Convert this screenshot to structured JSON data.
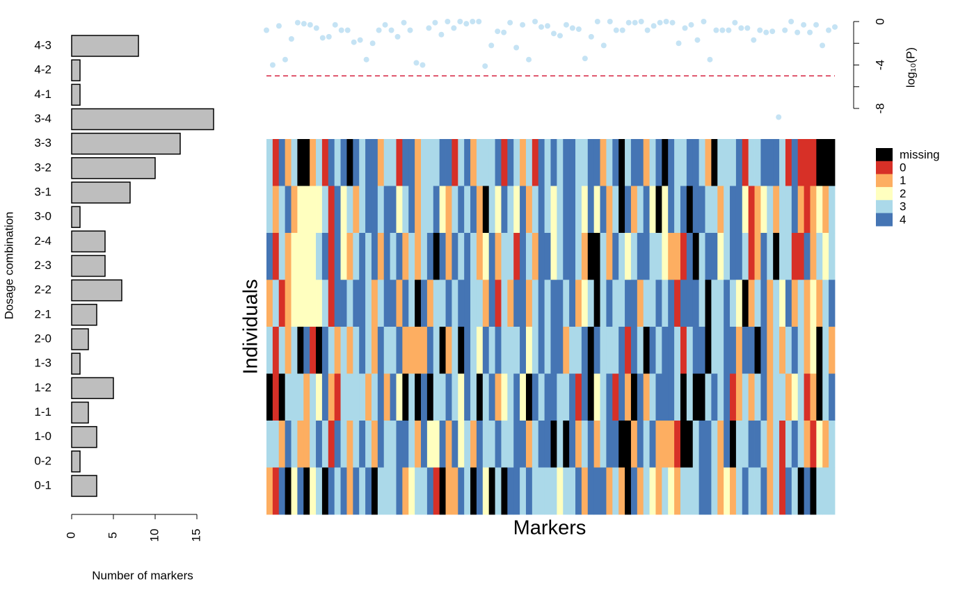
{
  "chart_data": [
    {
      "type": "bar",
      "orientation": "horizontal",
      "categories": [
        "0-1",
        "0-2",
        "1-0",
        "1-1",
        "1-2",
        "1-3",
        "2-0",
        "2-1",
        "2-2",
        "2-3",
        "2-4",
        "3-0",
        "3-1",
        "3-2",
        "3-3",
        "3-4",
        "4-1",
        "4-2",
        "4-3"
      ],
      "values": [
        3,
        1,
        3,
        2,
        5,
        1,
        2,
        3,
        6,
        4,
        4,
        1,
        7,
        10,
        13,
        17,
        1,
        1,
        8
      ],
      "color": "#bebebe",
      "xlim": [
        0,
        17
      ],
      "xticks": [
        0,
        5,
        10,
        15
      ],
      "xlabel": "Number of markers",
      "ylabel": "Dosage combination"
    },
    {
      "type": "scatter",
      "values": [
        -0.8,
        -4.0,
        -0.4,
        -3.5,
        -1.6,
        -0.1,
        -0.2,
        -0.3,
        -0.6,
        -1.5,
        -1.4,
        -0.3,
        -0.8,
        -0.8,
        -1.9,
        -1.7,
        -3.5,
        -2.0,
        -0.8,
        -0.3,
        -0.8,
        -1.4,
        -0.1,
        -0.8,
        -3.8,
        -4.0,
        -0.6,
        -0.1,
        -1.2,
        0,
        -0.6,
        0,
        -0.2,
        0,
        0,
        -4.1,
        -2.2,
        -0.9,
        -1.0,
        -0.1,
        -2.4,
        -0.3,
        -3.5,
        0,
        -0.5,
        -0.4,
        -1.1,
        -1.3,
        -0.3,
        -0.6,
        -0.7,
        -3.4,
        -1.4,
        0,
        -2.2,
        0,
        -0.8,
        -0.8,
        -0.1,
        -0.1,
        0,
        -0.8,
        -0.4,
        -0.1,
        0,
        -0.1,
        -2.0,
        -0.6,
        -0.3,
        -1.7,
        0,
        -3.5,
        -0.8,
        -0.8,
        -0.8,
        -0.1,
        -0.6,
        -0.6,
        -1.7,
        -0.8,
        -1.0,
        -0.9,
        -8.8,
        -0.8,
        0,
        -1.0,
        -0.3,
        -1.0,
        -0.3,
        -2.2,
        -0.8,
        -0.5
      ],
      "color": "#c5e3f4",
      "ylim": [
        -8,
        0
      ],
      "yticks": [
        0,
        -4,
        -8
      ],
      "yminorticks": [
        -2,
        -6
      ],
      "ylabel": "log₁₀(P)",
      "threshold": -5,
      "threshold_color": "#df536b"
    },
    {
      "type": "heatmap",
      "xlabel": "Markers",
      "ylabel": "Individuals",
      "missing": {
        "label": "missing",
        "color": "#000000"
      },
      "scale": [
        {
          "value": 0,
          "label": "0",
          "color": "#d73027"
        },
        {
          "value": 1,
          "label": "1",
          "color": "#fdae61"
        },
        {
          "value": 2,
          "label": "2",
          "color": "#ffffbf"
        },
        {
          "value": 3,
          "label": "3",
          "color": "#abd9e9"
        },
        {
          "value": 4,
          "label": "4",
          "color": "#4575b4"
        }
      ],
      "values": [
        [
          3,
          0,
          4,
          1,
          3,
          null,
          null,
          1,
          3,
          0,
          4,
          3,
          4,
          null,
          4,
          3,
          4,
          4,
          1,
          3,
          3,
          0,
          4,
          4,
          1,
          3,
          3,
          3,
          4,
          4,
          0,
          3,
          4,
          1,
          3,
          3,
          3,
          4,
          0,
          4,
          3,
          1,
          3,
          0,
          4,
          3,
          4,
          3,
          4,
          4,
          3,
          3,
          4,
          4,
          1,
          3,
          4,
          null,
          3,
          4,
          4,
          1,
          3,
          4,
          null,
          4,
          3,
          3,
          4,
          4,
          3,
          1,
          null,
          3,
          3,
          3,
          4,
          0,
          3,
          3,
          4,
          4,
          4,
          3,
          0,
          4,
          0,
          0,
          0,
          null,
          null,
          null
        ],
        [
          3,
          1,
          3,
          4,
          1,
          2,
          2,
          2,
          2,
          3,
          0,
          4,
          2,
          3,
          1,
          3,
          4,
          4,
          3,
          4,
          4,
          2,
          3,
          4,
          1,
          3,
          3,
          4,
          2,
          1,
          3,
          4,
          3,
          4,
          1,
          null,
          3,
          2,
          4,
          3,
          2,
          4,
          1,
          3,
          4,
          3,
          2,
          3,
          4,
          4,
          3,
          2,
          4,
          2,
          4,
          1,
          3,
          null,
          4,
          1,
          3,
          4,
          2,
          null,
          2,
          4,
          3,
          4,
          null,
          4,
          4,
          3,
          3,
          1,
          3,
          4,
          4,
          2,
          0,
          1,
          2,
          3,
          1,
          3,
          3,
          4,
          1,
          0,
          1,
          2,
          1,
          3
        ],
        [
          4,
          0,
          3,
          1,
          2,
          2,
          2,
          2,
          3,
          4,
          0,
          4,
          2,
          1,
          3,
          4,
          3,
          4,
          1,
          4,
          3,
          4,
          1,
          3,
          1,
          3,
          4,
          null,
          4,
          1,
          4,
          3,
          4,
          3,
          1,
          2,
          4,
          1,
          3,
          3,
          0,
          4,
          3,
          1,
          4,
          4,
          2,
          3,
          4,
          4,
          3,
          1,
          null,
          null,
          3,
          1,
          4,
          3,
          2,
          3,
          4,
          4,
          3,
          3,
          2,
          1,
          1,
          0,
          4,
          null,
          3,
          4,
          4,
          2,
          3,
          4,
          4,
          3,
          0,
          1,
          4,
          3,
          null,
          3,
          3,
          0,
          0,
          4,
          1,
          3,
          2,
          3
        ],
        [
          1,
          3,
          0,
          1,
          2,
          2,
          2,
          2,
          2,
          3,
          0,
          4,
          4,
          3,
          4,
          4,
          3,
          1,
          3,
          4,
          4,
          1,
          4,
          3,
          null,
          4,
          1,
          3,
          3,
          4,
          3,
          4,
          4,
          3,
          3,
          1,
          4,
          0,
          3,
          1,
          4,
          4,
          1,
          3,
          4,
          3,
          4,
          4,
          3,
          4,
          1,
          2,
          3,
          null,
          3,
          4,
          3,
          3,
          4,
          4,
          1,
          3,
          3,
          4,
          3,
          4,
          0,
          4,
          4,
          4,
          3,
          null,
          3,
          3,
          4,
          3,
          2,
          null,
          1,
          3,
          4,
          1,
          3,
          2,
          4,
          1,
          3,
          1,
          2,
          1,
          3,
          4
        ],
        [
          3,
          0,
          3,
          1,
          3,
          null,
          4,
          0,
          null,
          4,
          3,
          1,
          3,
          1,
          3,
          4,
          3,
          1,
          4,
          3,
          3,
          4,
          1,
          1,
          1,
          1,
          4,
          3,
          null,
          1,
          3,
          null,
          4,
          3,
          2,
          4,
          3,
          4,
          3,
          3,
          3,
          4,
          2,
          3,
          4,
          3,
          4,
          4,
          1,
          3,
          3,
          4,
          null,
          4,
          3,
          3,
          3,
          4,
          0,
          4,
          3,
          null,
          4,
          3,
          4,
          4,
          3,
          0,
          3,
          4,
          4,
          null,
          3,
          3,
          4,
          4,
          1,
          4,
          4,
          null,
          4,
          1,
          3,
          1,
          3,
          4,
          3,
          1,
          2,
          null,
          3,
          1
        ],
        [
          null,
          0,
          null,
          3,
          3,
          3,
          1,
          3,
          2,
          4,
          1,
          0,
          3,
          3,
          3,
          3,
          1,
          3,
          4,
          1,
          4,
          2,
          null,
          3,
          null,
          4,
          null,
          3,
          3,
          4,
          3,
          2,
          4,
          3,
          null,
          3,
          4,
          1,
          2,
          3,
          4,
          2,
          null,
          4,
          3,
          4,
          4,
          3,
          3,
          4,
          0,
          4,
          null,
          2,
          3,
          4,
          0,
          4,
          1,
          null,
          4,
          1,
          3,
          4,
          4,
          4,
          3,
          null,
          3,
          null,
          null,
          3,
          4,
          3,
          4,
          0,
          1,
          3,
          1,
          3,
          4,
          1,
          3,
          3,
          1,
          2,
          3,
          0,
          1,
          null,
          3,
          4
        ],
        [
          3,
          3,
          1,
          4,
          3,
          1,
          1,
          3,
          4,
          3,
          0,
          4,
          3,
          1,
          3,
          4,
          3,
          1,
          4,
          3,
          3,
          4,
          4,
          3,
          1,
          4,
          2,
          2,
          4,
          1,
          4,
          2,
          3,
          1,
          4,
          3,
          3,
          4,
          3,
          3,
          4,
          4,
          1,
          3,
          4,
          4,
          null,
          3,
          null,
          4,
          1,
          3,
          4,
          1,
          3,
          4,
          4,
          null,
          null,
          1,
          4,
          3,
          4,
          1,
          1,
          1,
          0,
          null,
          null,
          3,
          4,
          4,
          3,
          1,
          4,
          null,
          3,
          3,
          4,
          4,
          3,
          1,
          3,
          0,
          3,
          4,
          3,
          1,
          0,
          2,
          1,
          3
        ],
        [
          1,
          0,
          4,
          null,
          2,
          4,
          null,
          2,
          3,
          null,
          4,
          3,
          4,
          1,
          4,
          3,
          4,
          null,
          3,
          3,
          3,
          4,
          1,
          2,
          3,
          3,
          4,
          0,
          null,
          1,
          1,
          4,
          3,
          null,
          4,
          2,
          null,
          3,
          null,
          4,
          4,
          3,
          4,
          3,
          3,
          3,
          3,
          2,
          3,
          3,
          4,
          1,
          4,
          4,
          4,
          1,
          3,
          1,
          null,
          4,
          1,
          3,
          2,
          1,
          3,
          2,
          1,
          3,
          3,
          3,
          4,
          4,
          3,
          1,
          2,
          1,
          3,
          4,
          3,
          3,
          4,
          1,
          3,
          0,
          4,
          3,
          null,
          4,
          null,
          3,
          3,
          3
        ]
      ]
    }
  ]
}
